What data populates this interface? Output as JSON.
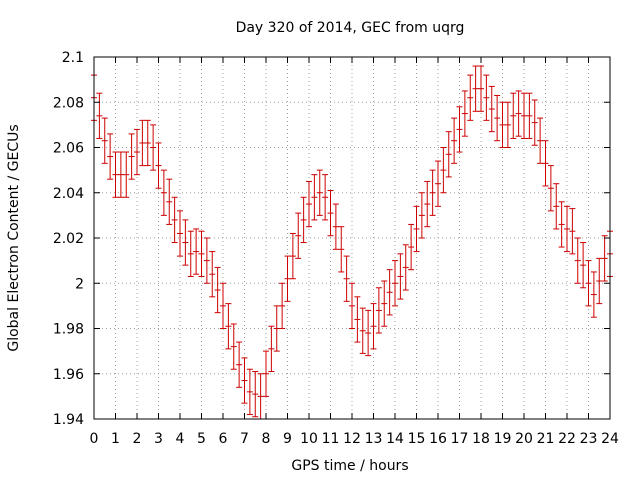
{
  "chart_data": {
    "type": "scatter",
    "title": "Day 320 of 2014, GEC from uqrg",
    "xlabel": "GPS time / hours",
    "ylabel": "Global Electron Content / GECUs",
    "xlim": [
      0,
      24
    ],
    "ylim": [
      1.94,
      2.1
    ],
    "xticks": [
      "0",
      "1",
      "2",
      "3",
      "4",
      "5",
      "6",
      "7",
      "8",
      "9",
      "10",
      "11",
      "12",
      "13",
      "14",
      "15",
      "16",
      "17",
      "18",
      "19",
      "20",
      "21",
      "22",
      "23",
      "24"
    ],
    "yticks": [
      "1.94",
      "1.96",
      "1.98",
      "2",
      "2.02",
      "2.04",
      "2.06",
      "2.08",
      "2.1"
    ],
    "grid": true,
    "color": "#cc0000",
    "error": 0.01,
    "series": [
      {
        "x": [
          0,
          0.25,
          0.5,
          0.75,
          1,
          1.25,
          1.5,
          1.75,
          2,
          2.25,
          2.5,
          2.75,
          3,
          3.25,
          3.5,
          3.75,
          4,
          4.25,
          4.5,
          4.75,
          5,
          5.25,
          5.5,
          5.75,
          6,
          6.25,
          6.5,
          6.75,
          7,
          7.25,
          7.5,
          7.75,
          8,
          8.25,
          8.5,
          8.75,
          9,
          9.25,
          9.5,
          9.75,
          10,
          10.25,
          10.5,
          10.75,
          11,
          11.25,
          11.5,
          11.75,
          12,
          12.25,
          12.5,
          12.75,
          13,
          13.25,
          13.5,
          13.75,
          14,
          14.25,
          14.5,
          14.75,
          15,
          15.25,
          15.5,
          15.75,
          16,
          16.25,
          16.5,
          16.75,
          17,
          17.25,
          17.5,
          17.75,
          18,
          18.25,
          18.5,
          18.75,
          19,
          19.25,
          19.5,
          19.75,
          20,
          20.25,
          20.5,
          20.75,
          21,
          21.25,
          21.5,
          21.75,
          22,
          22.25,
          22.5,
          22.75,
          23,
          23.25,
          23.5,
          23.75,
          24
        ],
        "values": [
          2.082,
          2.074,
          2.063,
          2.056,
          2.048,
          2.048,
          2.048,
          2.056,
          2.058,
          2.062,
          2.062,
          2.06,
          2.052,
          2.04,
          2.036,
          2.028,
          2.022,
          2.018,
          2.013,
          2.014,
          2.013,
          2.01,
          2.004,
          1.997,
          1.99,
          1.981,
          1.972,
          1.964,
          1.957,
          1.952,
          1.951,
          1.95,
          1.96,
          1.971,
          1.98,
          1.99,
          2.002,
          2.012,
          2.021,
          2.028,
          2.035,
          2.038,
          2.04,
          2.038,
          2.031,
          2.025,
          2.015,
          2.002,
          1.99,
          1.984,
          1.979,
          1.978,
          1.981,
          1.988,
          1.991,
          1.996,
          2.0,
          2.003,
          2.007,
          2.016,
          2.024,
          2.03,
          2.035,
          2.04,
          2.044,
          2.05,
          2.057,
          2.063,
          2.068,
          2.075,
          2.082,
          2.086,
          2.086,
          2.082,
          2.077,
          2.073,
          2.07,
          2.07,
          2.074,
          2.075,
          2.074,
          2.074,
          2.071,
          2.063,
          2.053,
          2.042,
          2.034,
          2.026,
          2.024,
          2.023,
          2.01,
          2.008,
          2.0,
          1.995,
          2.001,
          2.011,
          2.013
        ]
      }
    ]
  }
}
